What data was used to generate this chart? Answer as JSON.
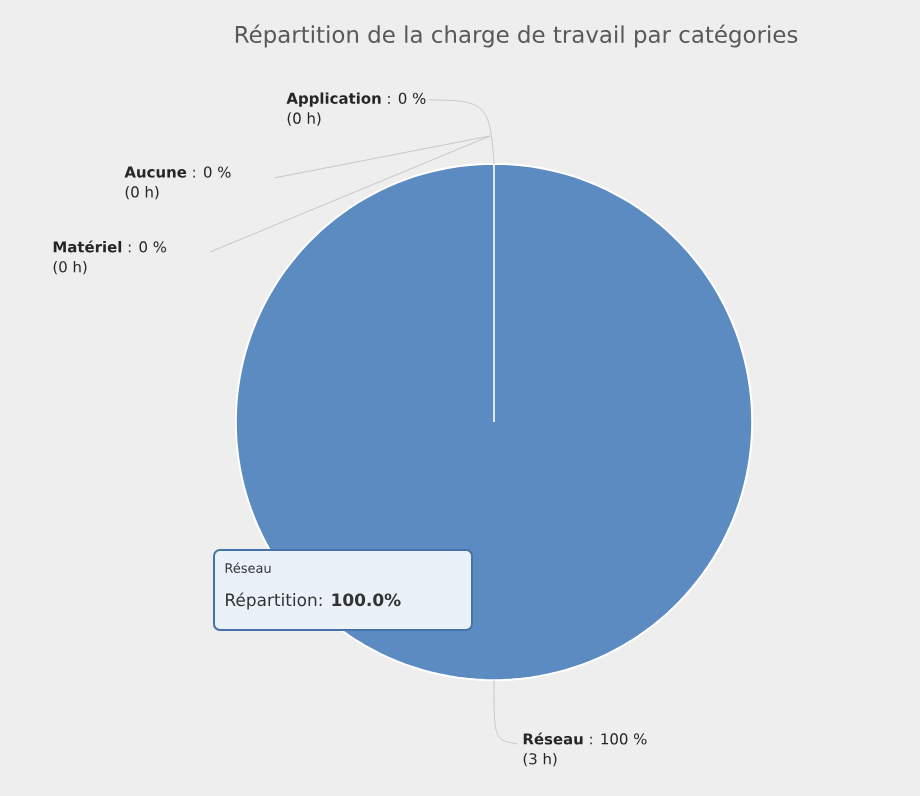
{
  "chart_data": {
    "type": "pie",
    "title": "Répartition de la charge de travail par catégories",
    "categories": [
      "Application",
      "Aucune",
      "Matériel",
      "Réseau"
    ],
    "values": [
      0,
      0,
      0,
      100
    ],
    "colors": [
      "#4572a7",
      "#aa4643",
      "#89a54e",
      "#5b8bc1"
    ],
    "value_labels": [
      ": 0 %",
      ": 0 %",
      ": 0 %",
      ": 100 %"
    ],
    "annotations": [
      "(0 h)",
      "(0 h)",
      "(0 h)",
      "(3 h)",
      "Réseau",
      "Répartition:  **100.0%**"
    ]
  }
}
